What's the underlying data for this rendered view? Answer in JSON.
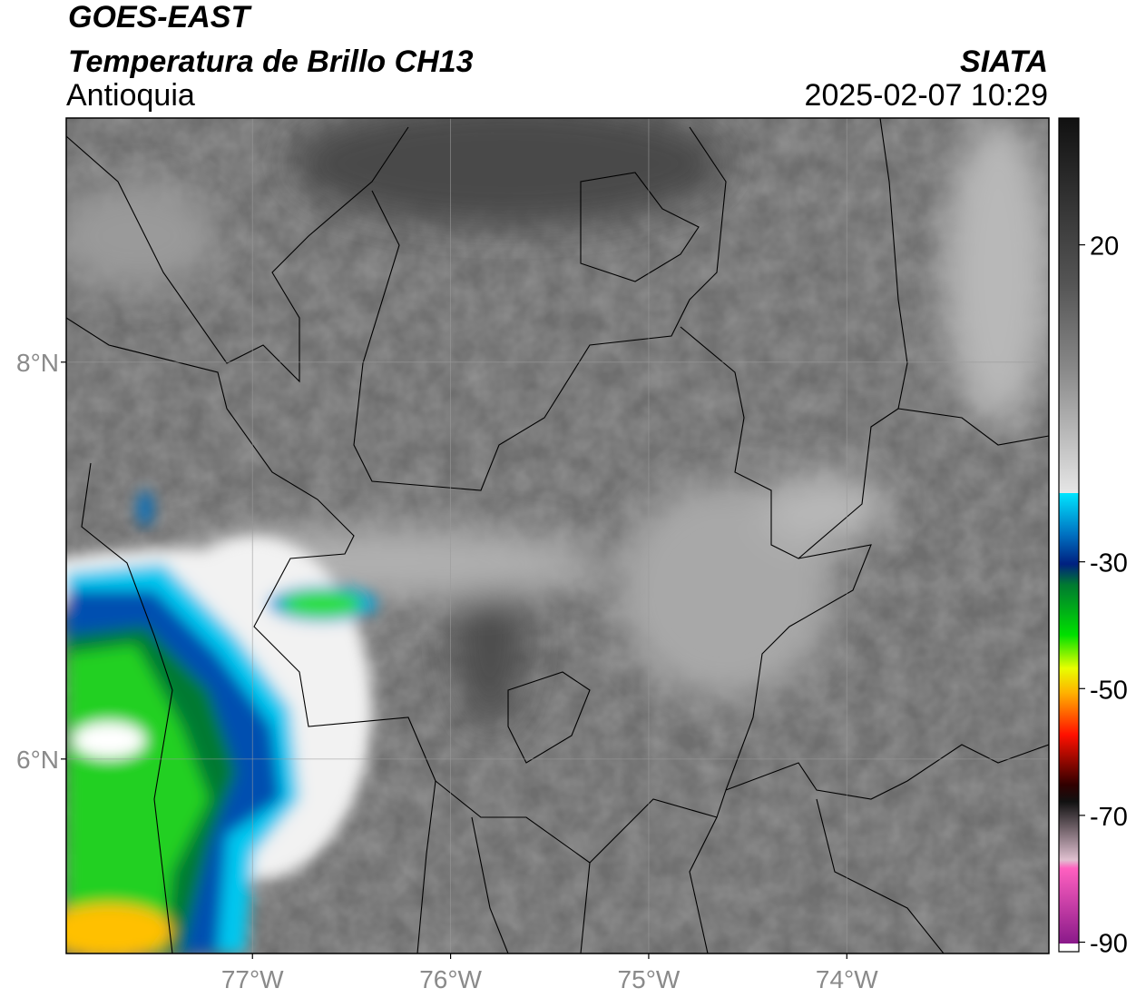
{
  "header": {
    "satellite": "GOES-EAST",
    "product": "Temperatura de Brillo CH13",
    "region": "Antioquia",
    "agency": "SIATA",
    "datetime": "2025-02-07 10:29"
  },
  "map": {
    "xlim": [
      -77.94,
      -72.98
    ],
    "ylim": [
      5.02,
      9.23
    ],
    "xticks": [
      {
        "value": -77,
        "label": "77°W"
      },
      {
        "value": -76,
        "label": "76°W"
      },
      {
        "value": -75,
        "label": "75°W"
      },
      {
        "value": -74,
        "label": "74°W"
      }
    ],
    "yticks": [
      {
        "value": 8,
        "label": "8°N"
      },
      {
        "value": 6,
        "label": "6°N"
      }
    ],
    "grid": true
  },
  "colorbar": {
    "lim": [
      -91.5,
      40
    ],
    "ticks": [
      20,
      -30,
      -50,
      -70,
      -90
    ]
  }
}
